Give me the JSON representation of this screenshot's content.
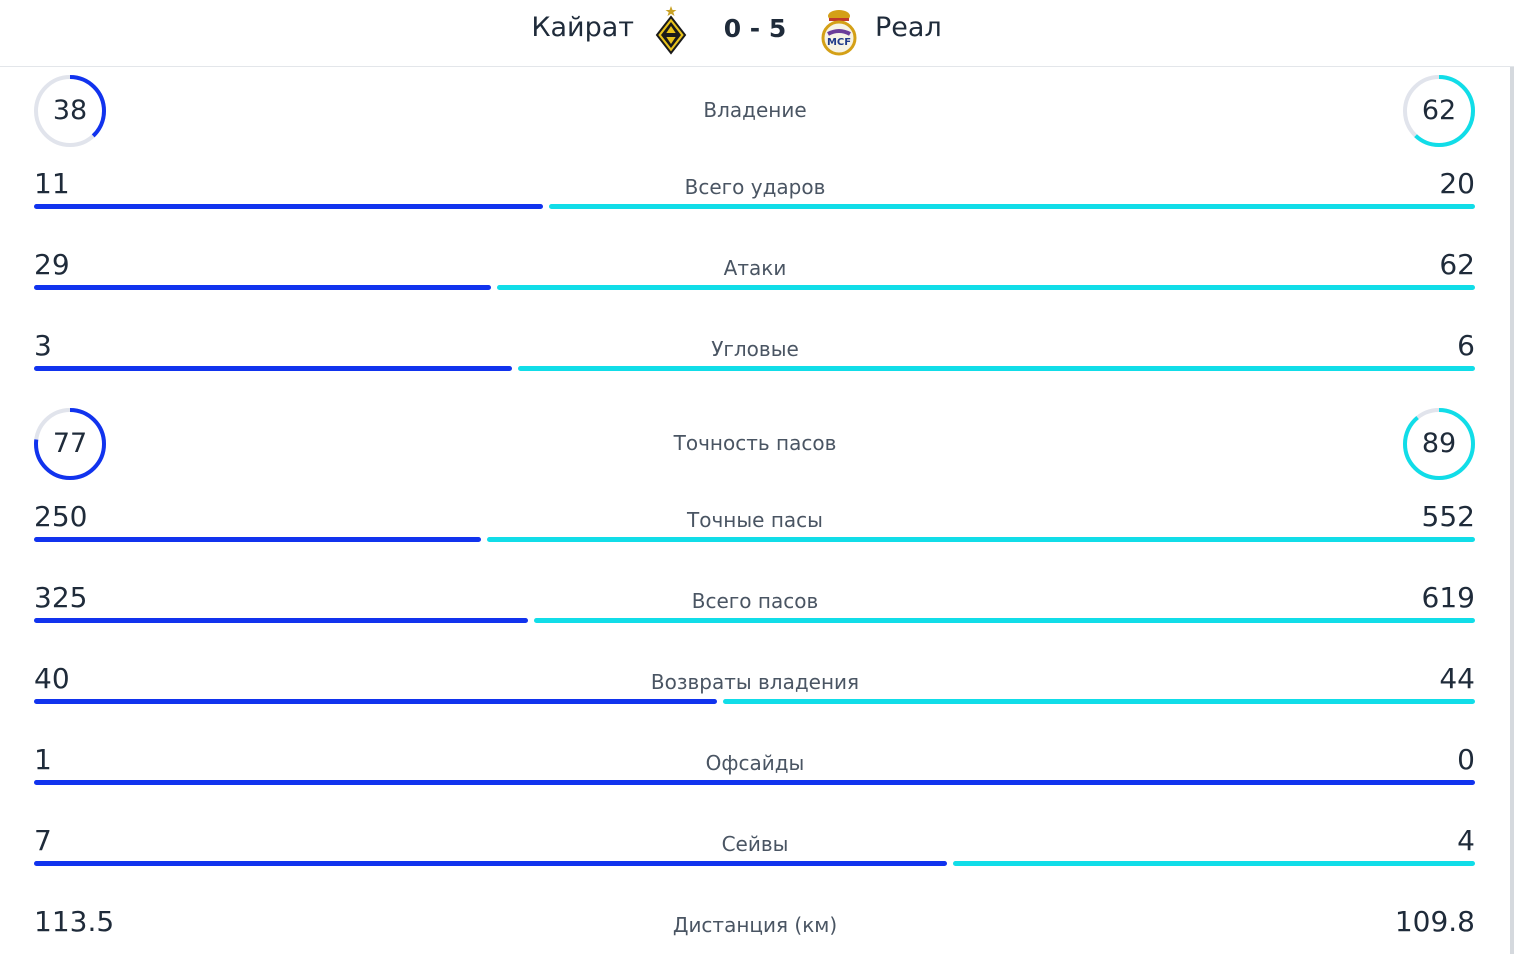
{
  "header": {
    "home_team": "Кайрат",
    "away_team": "Реал",
    "score": "0 - 5",
    "home_logo_icon": "kairat-crest-icon",
    "away_logo_icon": "real-madrid-crest-icon"
  },
  "colors": {
    "home": "#1133ee",
    "away": "#11dde8",
    "ring_track": "#e1e4ec"
  },
  "stats": {
    "possession": {
      "label": "Владение",
      "home": "38",
      "away": "62",
      "home_pct": 38,
      "away_pct": 62
    },
    "total_shots": {
      "label": "Всего ударов",
      "home": "11",
      "away": "20"
    },
    "attacks": {
      "label": "Атаки",
      "home": "29",
      "away": "62"
    },
    "corners": {
      "label": "Угловые",
      "home": "3",
      "away": "6"
    },
    "pass_accuracy": {
      "label": "Точность пасов",
      "home": "77",
      "away": "89",
      "home_pct": 77,
      "away_pct": 89
    },
    "accurate_passes": {
      "label": "Точные пасы",
      "home": "250",
      "away": "552"
    },
    "total_passes": {
      "label": "Всего пасов",
      "home": "325",
      "away": "619"
    },
    "recoveries": {
      "label": "Возвраты владения",
      "home": "40",
      "away": "44"
    },
    "offsides": {
      "label": "Офсайды",
      "home": "1",
      "away": "0"
    },
    "saves": {
      "label": "Сейвы",
      "home": "7",
      "away": "4"
    },
    "distance": {
      "label": "Дистанция (км)",
      "home": "113.5",
      "away": "109.8"
    }
  }
}
